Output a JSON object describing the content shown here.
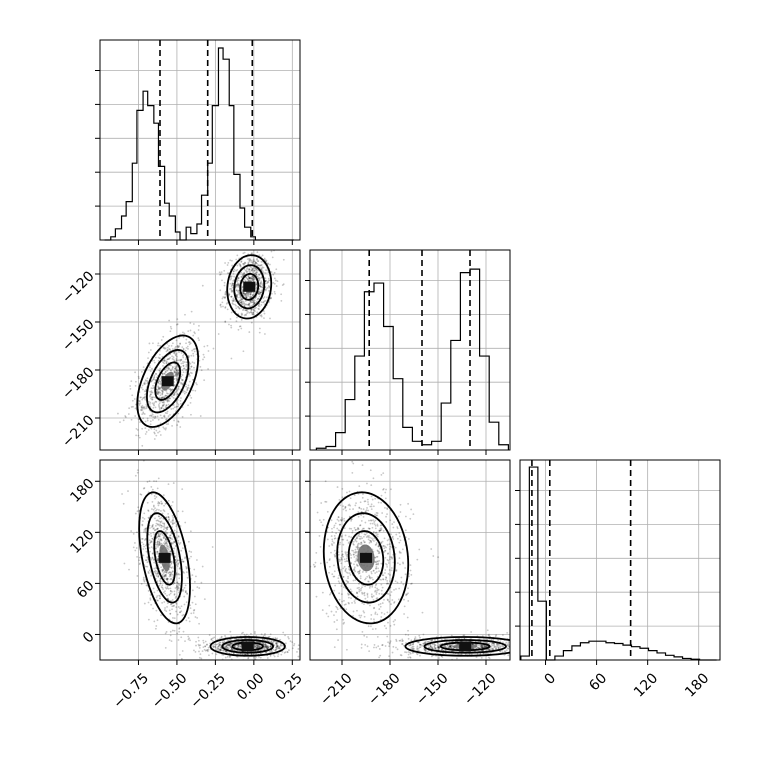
{
  "chart_data": {
    "type": "corner",
    "title": "",
    "grid": true,
    "params": [
      {
        "xlim": [
          -1.0,
          0.3
        ],
        "ticks": [
          -0.75,
          -0.5,
          -0.25,
          0.0,
          0.25
        ],
        "tick_labels": [
          "−0.75",
          "−0.50",
          "−0.25",
          "0.00",
          "0.25"
        ]
      },
      {
        "xlim": [
          -230,
          -105
        ],
        "ticks": [
          -210,
          -180,
          -150,
          -120
        ],
        "tick_labels": [
          "−210",
          "−180",
          "−150",
          "−120"
        ]
      },
      {
        "xlim": [
          -30,
          205
        ],
        "ticks": [
          0,
          60,
          120,
          180
        ],
        "tick_labels": [
          "0",
          "60",
          "120",
          "180"
        ]
      }
    ],
    "y_axis_labels": [
      {
        "row": 1,
        "ticks": [
          -120,
          -150,
          -180,
          -210
        ],
        "tick_labels": [
          "−120",
          "−150",
          "−180",
          "−210"
        ]
      },
      {
        "row": 2,
        "ticks": [
          180,
          120,
          60,
          0
        ],
        "tick_labels": [
          "180",
          "120",
          "60",
          "0"
        ]
      }
    ],
    "histograms": [
      {
        "param": 0,
        "edges": [
          -0.97,
          -0.93,
          -0.9,
          -0.86,
          -0.83,
          -0.79,
          -0.76,
          -0.72,
          -0.69,
          -0.65,
          -0.62,
          -0.58,
          -0.55,
          -0.51,
          -0.48,
          -0.44,
          -0.41,
          -0.37,
          -0.34,
          -0.3,
          -0.27,
          -0.23,
          -0.2,
          -0.16,
          -0.13,
          -0.09,
          -0.06,
          -0.02,
          0.01,
          0.05,
          0.08,
          0.12,
          0.15,
          0.19,
          0.22,
          0.26
        ],
        "counts": [
          0,
          2,
          7,
          15,
          24,
          48,
          81,
          93,
          84,
          73,
          46,
          23,
          15,
          5,
          0,
          8,
          4,
          10,
          28,
          48,
          84,
          120,
          113,
          84,
          41,
          20,
          8,
          2,
          0,
          0,
          0,
          0,
          0,
          0,
          0
        ],
        "ymax": 125,
        "quantiles": [
          -0.61,
          -0.3,
          -0.01
        ]
      },
      {
        "param": 1,
        "edges": [
          -226,
          -220,
          -214,
          -208,
          -202,
          -196,
          -190,
          -184,
          -178,
          -172,
          -166,
          -160,
          -154,
          -148,
          -142,
          -136,
          -130,
          -124,
          -118,
          -112,
          -106
        ],
        "counts": [
          1,
          2,
          10,
          29,
          54,
          91,
          96,
          71,
          41,
          13,
          5,
          3,
          5,
          27,
          63,
          102,
          104,
          54,
          16,
          3
        ],
        "ymax": 115,
        "quantiles": [
          -193,
          -160,
          -130
        ]
      },
      {
        "param": 2,
        "edges": [
          -29,
          -19,
          -9,
          1,
          11,
          21,
          31,
          41,
          51,
          61,
          71,
          81,
          91,
          101,
          111,
          121,
          131,
          141,
          151,
          161,
          171,
          181,
          191,
          201
        ],
        "counts": [
          5,
          246,
          75,
          0,
          5,
          12,
          18,
          22,
          24,
          24,
          22,
          21,
          19,
          17,
          15,
          12,
          9,
          6,
          4,
          2,
          1,
          0,
          0
        ],
        "ymax": 255,
        "quantiles": [
          -16,
          5,
          100
        ]
      }
    ],
    "panels_2d": [
      {
        "x_param": 0,
        "y_param": 1,
        "modes": [
          {
            "cx": -0.03,
            "cy": -128,
            "sx": 0.065,
            "sy": 9,
            "rho": 0.1,
            "pixel_levels": [
              0.85,
              0.6
            ]
          },
          {
            "cx": -0.56,
            "cy": -187,
            "sx": 0.09,
            "sy": 13,
            "rho": 0.5,
            "pixel_levels": [
              0.75,
              0.5
            ]
          }
        ]
      },
      {
        "x_param": 0,
        "y_param": 2,
        "modes": [
          {
            "cx": -0.58,
            "cy": 90,
            "sx": 0.075,
            "sy": 35,
            "rho": -0.45,
            "pixel_levels": [
              0.2
            ]
          },
          {
            "cx": -0.04,
            "cy": -14,
            "sx": 0.11,
            "sy": 5,
            "rho": 0.0,
            "pixel_levels": [
              0.95,
              0.7
            ]
          }
        ]
      },
      {
        "x_param": 1,
        "y_param": 2,
        "modes": [
          {
            "cx": -195,
            "cy": 90,
            "sx": 12,
            "sy": 35,
            "rho": -0.1,
            "pixel_levels": [
              0.2
            ]
          },
          {
            "cx": -133,
            "cy": -14,
            "sx": 17,
            "sy": 5,
            "rho": 0.0,
            "pixel_levels": [
              0.95,
              0.7
            ]
          }
        ]
      }
    ],
    "hist_yticks": 5
  }
}
